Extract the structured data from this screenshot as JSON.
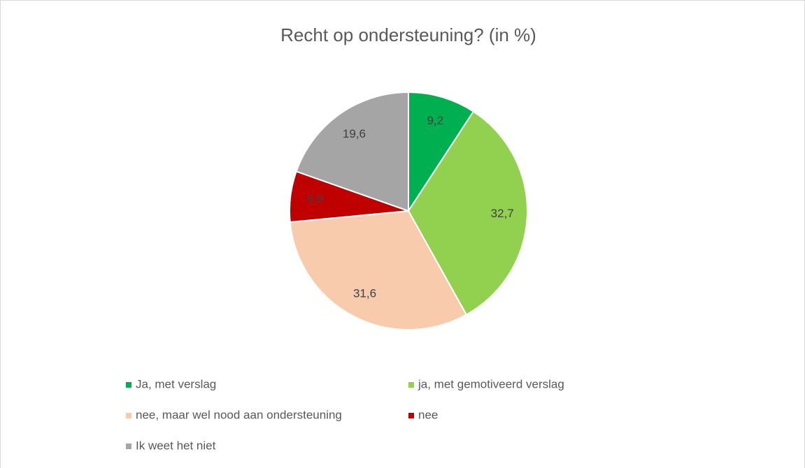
{
  "chart_data": {
    "type": "pie",
    "title": "Recht op ondersteuning? (in %)",
    "categories": [
      "Ja, met verslag",
      "ja, met gemotiveerd verslag",
      "nee, maar wel nood aan ondersteuning",
      "nee",
      "Ik weet het niet"
    ],
    "values": [
      9.2,
      32.7,
      31.6,
      6.9,
      19.6
    ],
    "value_labels": [
      "9,2",
      "32,7",
      "31,6",
      "6,9",
      "19,6"
    ],
    "colors": [
      "#00b050",
      "#92d050",
      "#f8cbad",
      "#c00000",
      "#a5a5a5"
    ],
    "legend": "bottom"
  }
}
